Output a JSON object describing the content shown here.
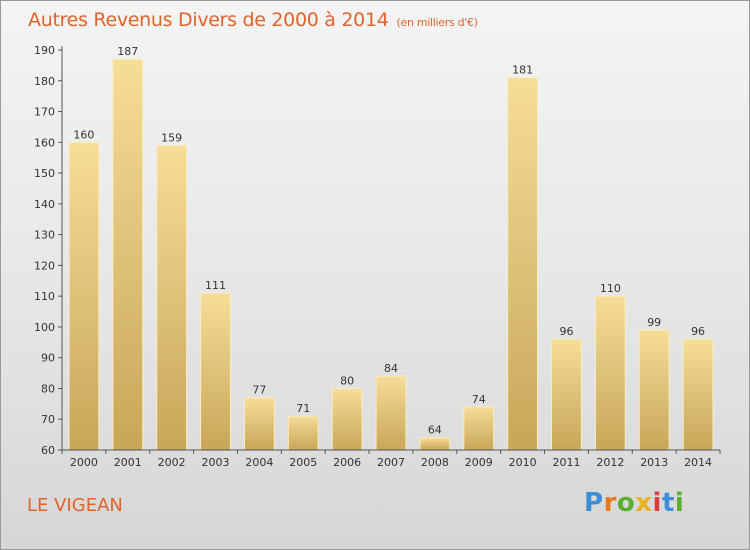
{
  "header": {
    "title": "Autres Revenus Divers de 2000 à 2014",
    "unit": "(en milliers d'€)"
  },
  "location": "LE VIGEAN",
  "brand": {
    "letters": [
      "P",
      "r",
      "o",
      "x",
      "i",
      "t",
      "i"
    ],
    "colors": [
      "#3a8fd6",
      "#e8791e",
      "#58b02f",
      "#e8b31e",
      "#d93d3d",
      "#3a8fd6",
      "#58b02f"
    ]
  },
  "colors": {
    "bar_light": "#f6dd98",
    "bar_dark": "#c8a659",
    "title": "#e0632a"
  },
  "chart_data": {
    "type": "bar",
    "categories": [
      "2000",
      "2001",
      "2002",
      "2003",
      "2004",
      "2005",
      "2006",
      "2007",
      "2008",
      "2009",
      "2010",
      "2011",
      "2012",
      "2013",
      "2014"
    ],
    "values": [
      160,
      187,
      159,
      111,
      77,
      71,
      80,
      84,
      64,
      74,
      181,
      96,
      110,
      99,
      96
    ],
    "ylim": [
      60,
      190
    ],
    "yticks": [
      60,
      70,
      80,
      90,
      100,
      110,
      120,
      130,
      140,
      150,
      160,
      170,
      180,
      190
    ],
    "grid": false,
    "legend": "none"
  }
}
